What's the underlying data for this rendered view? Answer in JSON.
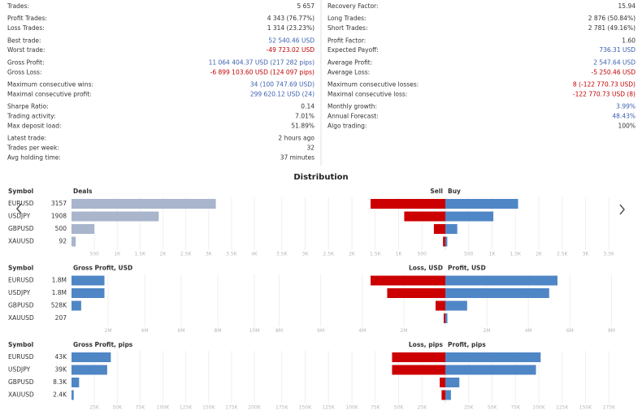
{
  "stats": {
    "left": [
      [
        {
          "label": "Trades:",
          "value": "5 657"
        }
      ],
      [
        {
          "label": "Profit Trades:",
          "value": "4 343 (76.77%)"
        },
        {
          "label": "Loss Trades:",
          "value": "1 314 (23.23%)"
        }
      ],
      [
        {
          "label": "Best trade:",
          "value": "52 540.46 USD",
          "color": "#3a5fb0"
        },
        {
          "label": "Worst trade:",
          "value": "-49 723.02 USD",
          "color": "#c00000"
        }
      ],
      [
        {
          "label": "Gross Profit:",
          "value": "11 064 404.37 USD (217 282 pips)",
          "color": "#3a5fb0"
        },
        {
          "label": "Gross Loss:",
          "value": "-6 899 103.60 USD (124 097 pips)",
          "color": "#c00000"
        }
      ],
      [
        {
          "label": "Maximum consecutive wins:",
          "value": "34 (100 747.69 USD)",
          "color": "#3a5fb0"
        },
        {
          "label": "Maximal consecutive profit:",
          "value": "299 620.12 USD (24)",
          "color": "#3a5fb0"
        }
      ],
      [
        {
          "label": "Sharpe Ratio:",
          "value": "0.14"
        },
        {
          "label": "Trading activity:",
          "value": "7.01%"
        },
        {
          "label": "Max deposit load:",
          "value": "51.89%"
        }
      ],
      [
        {
          "label": "Latest trade:",
          "value": "2 hours ago"
        },
        {
          "label": "Trades per week:",
          "value": "32"
        },
        {
          "label": "Avg holding time:",
          "value": "37 minutes"
        }
      ]
    ],
    "right": [
      [
        {
          "label": "Recovery Factor:",
          "value": "15.94"
        }
      ],
      [
        {
          "label": "Long Trades:",
          "value": "2 876 (50.84%)"
        },
        {
          "label": "Short Trades:",
          "value": "2 781 (49.16%)"
        }
      ],
      [
        {
          "label": "Profit Factor:",
          "value": "1.60"
        },
        {
          "label": "Expected Payoff:",
          "value": "736.31 USD",
          "color": "#3a5fb0"
        }
      ],
      [
        {
          "label": "Average Profit:",
          "value": "2 547.64 USD",
          "color": "#3a5fb0"
        },
        {
          "label": "Average Loss:",
          "value": "-5 250.46 USD",
          "color": "#c00000"
        }
      ],
      [
        {
          "label": "Maximum consecutive losses:",
          "value": "8 (-122 770.73 USD)",
          "color": "#c00000"
        },
        {
          "label": "Maximal consecutive loss:",
          "value": "-122 770.73 USD (8)",
          "color": "#c00000"
        }
      ],
      [
        {
          "label": "Monthly growth:",
          "value": "3.99%",
          "color": "#3a5fb0"
        },
        {
          "label": "Annual Forecast:",
          "value": "48.43%",
          "color": "#3a5fb0"
        },
        {
          "label": "Algo trading:",
          "value": "100%"
        }
      ]
    ]
  },
  "distribution": {
    "title": "Distribution",
    "panels": [
      {
        "symbol_header": "Symbol",
        "left": {
          "type": "bar",
          "title": "Deals",
          "categories": [
            "EURUSD",
            "USDJPY",
            "GBPUSD",
            "XAUUSD"
          ],
          "values": [
            3157,
            1908,
            500,
            92
          ],
          "color": "#a9b5cc",
          "xlim": [
            0,
            4000
          ],
          "xticks": [
            500,
            {
              "value": 1000,
              "label": "1K"
            },
            {
              "value": 1500,
              "label": "1.5K"
            },
            {
              "value": 2000,
              "label": "2K"
            },
            {
              "value": 2500,
              "label": "2.5K"
            },
            {
              "value": 3000,
              "label": "3K"
            },
            {
              "value": 3500,
              "label": "3.5K"
            },
            {
              "value": 4000,
              "label": "4K"
            }
          ]
        },
        "right": {
          "type": "diverging-bar",
          "series": [
            {
              "name": "Sell",
              "color": "#cc0000",
              "values": [
                1600,
                880,
                245,
                50
              ]
            },
            {
              "name": "Buy",
              "color": "#4f86c6",
              "values": [
                1557,
                1028,
                255,
                42
              ]
            }
          ],
          "xlim": [
            0,
            4000
          ],
          "xticks": [
            500,
            {
              "value": 1000,
              "label": "1K"
            },
            {
              "value": 1500,
              "label": "1.5K"
            },
            {
              "value": 2000,
              "label": "2K"
            },
            {
              "value": 2500,
              "label": "2.5K"
            },
            {
              "value": 3000,
              "label": "3K"
            },
            {
              "value": 3500,
              "label": "3.5K"
            }
          ]
        }
      },
      {
        "symbol_header": "Symbol",
        "left": {
          "type": "bar",
          "title": "Gross Profit, USD",
          "categories": [
            "EURUSD",
            "USDJPY",
            "GBPUSD",
            "XAUUSD"
          ],
          "values": [
            1800000,
            1800000,
            528000,
            207
          ],
          "value_labels": [
            "1.8M",
            "1.8M",
            "528K",
            "207"
          ],
          "color": "#4f86c6",
          "xlim": [
            0,
            10000000
          ],
          "xticks": [
            {
              "value": 2000000,
              "label": "2M"
            },
            {
              "value": 4000000,
              "label": "4M"
            },
            {
              "value": 6000000,
              "label": "6M"
            },
            {
              "value": 8000000,
              "label": "8M"
            },
            {
              "value": 10000000,
              "label": "10M"
            }
          ]
        },
        "right": {
          "type": "diverging-bar",
          "series": [
            {
              "name": "Loss, USD",
              "color": "#cc0000",
              "values": [
                3600000,
                2800000,
                470000,
                80000
              ]
            },
            {
              "name": "Profit, USD",
              "color": "#4f86c6",
              "values": [
                5400000,
                5000000,
                1050000,
                100000
              ]
            }
          ],
          "xlim": [
            0,
            9000000
          ],
          "xticks": [
            {
              "value": 2000000,
              "label": "2M"
            },
            {
              "value": 4000000,
              "label": "4M"
            },
            {
              "value": 6000000,
              "label": "6M"
            },
            {
              "value": 8000000,
              "label": "8M"
            }
          ]
        }
      },
      {
        "symbol_header": "Symbol",
        "left": {
          "type": "bar",
          "title": "Gross Profit, pips",
          "categories": [
            "EURUSD",
            "USDJPY",
            "GBPUSD",
            "XAUUSD"
          ],
          "values": [
            43000,
            39000,
            8300,
            2400
          ],
          "value_labels": [
            "43K",
            "39K",
            "8.3K",
            "2.4K"
          ],
          "color": "#4f86c6",
          "xlim": [
            0,
            200000
          ],
          "xticks": [
            {
              "value": 25000,
              "label": "25K"
            },
            {
              "value": 50000,
              "label": "50K"
            },
            {
              "value": 75000,
              "label": "75K"
            },
            {
              "value": 100000,
              "label": "100K"
            },
            {
              "value": 125000,
              "label": "125K"
            },
            {
              "value": 150000,
              "label": "150K"
            },
            {
              "value": 175000,
              "label": "175K"
            },
            {
              "value": 200000,
              "label": "200K"
            }
          ]
        },
        "right": {
          "type": "diverging-bar",
          "series": [
            {
              "name": "Loss, pips",
              "color": "#cc0000",
              "values": [
                57000,
                57000,
                6000,
                4000
              ]
            },
            {
              "name": "Profit, pips",
              "color": "#4f86c6",
              "values": [
                102000,
                97000,
                15000,
                6000
              ]
            }
          ],
          "xlim": [
            0,
            200000
          ],
          "xticks": [
            {
              "value": 25000,
              "label": "25K"
            },
            {
              "value": 50000,
              "label": "50K"
            },
            {
              "value": 75000,
              "label": "75K"
            },
            {
              "value": 100000,
              "label": "100K"
            },
            {
              "value": 125000,
              "label": "125K"
            },
            {
              "value": 150000,
              "label": "150K"
            },
            {
              "value": 175000,
              "label": "175K"
            }
          ]
        }
      }
    ]
  }
}
